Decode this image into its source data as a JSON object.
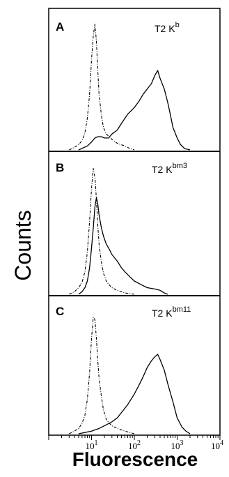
{
  "chart_data": {
    "type": "line",
    "ylabel": "Counts",
    "xlabel": "Fluorescence",
    "x_scale": "log",
    "xlim": [
      1,
      10000
    ],
    "ylim": [
      0,
      1
    ],
    "x_ticks": [
      {
        "value": 10,
        "base": "10",
        "exp": "1"
      },
      {
        "value": 100,
        "base": "10",
        "exp": "2"
      },
      {
        "value": 1000,
        "base": "10",
        "exp": "3"
      },
      {
        "value": 10000,
        "base": "10",
        "exp": "4"
      }
    ],
    "panels": [
      {
        "letter": "A",
        "title_main": "T2 K",
        "title_sup": "b",
        "series": [
          {
            "style": "dashed",
            "x": [
              3,
              4,
              5,
              6,
              7,
              8,
              9,
              10,
              11,
              12,
              13,
              14,
              15,
              17,
              19,
              22,
              26,
              30,
              40,
              60,
              80,
              100
            ],
            "y": [
              0.0,
              0.02,
              0.04,
              0.07,
              0.13,
              0.24,
              0.42,
              0.68,
              0.86,
              0.95,
              0.82,
              0.6,
              0.42,
              0.26,
              0.17,
              0.12,
              0.1,
              0.08,
              0.05,
              0.03,
              0.01,
              0.0
            ]
          },
          {
            "style": "solid",
            "x": [
              5,
              8,
              10,
              12,
              14,
              17,
              20,
              25,
              30,
              40,
              50,
              70,
              100,
              130,
              160,
              200,
              250,
              300,
              350,
              400,
              500,
              600,
              700,
              800,
              1000,
              1200,
              1500,
              2000
            ],
            "y": [
              0.0,
              0.03,
              0.06,
              0.09,
              0.1,
              0.1,
              0.09,
              0.09,
              0.12,
              0.15,
              0.2,
              0.27,
              0.32,
              0.37,
              0.42,
              0.46,
              0.5,
              0.56,
              0.6,
              0.54,
              0.46,
              0.36,
              0.26,
              0.17,
              0.09,
              0.04,
              0.01,
              0.0
            ]
          }
        ]
      },
      {
        "letter": "B",
        "title_main": "T2 K",
        "title_sup": "bm3",
        "series": [
          {
            "style": "dashed",
            "x": [
              3,
              4,
              5,
              6,
              7,
              8,
              9,
              10,
              11,
              12,
              13,
              14,
              15,
              17,
              19,
              22,
              26,
              30,
              40,
              60,
              100
            ],
            "y": [
              0.0,
              0.02,
              0.05,
              0.09,
              0.17,
              0.32,
              0.55,
              0.8,
              0.95,
              0.88,
              0.72,
              0.52,
              0.38,
              0.24,
              0.16,
              0.1,
              0.07,
              0.05,
              0.03,
              0.01,
              0.0
            ]
          },
          {
            "style": "solid",
            "x": [
              5,
              6,
              7,
              8,
              9,
              10,
              11,
              12,
              13,
              14,
              15,
              17,
              19,
              22,
              26,
              30,
              40,
              50,
              60,
              80,
              100,
              150,
              200,
              300,
              400,
              500,
              600
            ],
            "y": [
              0.0,
              0.02,
              0.05,
              0.1,
              0.2,
              0.35,
              0.5,
              0.66,
              0.73,
              0.68,
              0.6,
              0.5,
              0.44,
              0.38,
              0.34,
              0.3,
              0.25,
              0.2,
              0.17,
              0.13,
              0.1,
              0.07,
              0.05,
              0.04,
              0.03,
              0.01,
              0.0
            ]
          }
        ]
      },
      {
        "letter": "C",
        "title_main": "T2 K",
        "title_sup": "bm11",
        "series": [
          {
            "style": "dashed",
            "x": [
              3,
              4,
              5,
              6,
              7,
              8,
              9,
              10,
              11,
              12,
              13,
              14,
              15,
              17,
              19,
              22,
              26,
              30,
              40,
              60,
              100
            ],
            "y": [
              0.0,
              0.02,
              0.04,
              0.08,
              0.14,
              0.26,
              0.46,
              0.72,
              0.88,
              0.86,
              0.72,
              0.55,
              0.42,
              0.28,
              0.18,
              0.11,
              0.08,
              0.06,
              0.04,
              0.02,
              0.0
            ]
          },
          {
            "style": "solid",
            "x": [
              5,
              10,
              15,
              20,
              30,
              40,
              50,
              70,
              100,
              130,
              160,
              200,
              250,
              300,
              350,
              400,
              500,
              600,
              800,
              1000,
              1300,
              1600,
              2000
            ],
            "y": [
              0.0,
              0.02,
              0.04,
              0.06,
              0.09,
              0.12,
              0.16,
              0.22,
              0.3,
              0.37,
              0.43,
              0.5,
              0.55,
              0.58,
              0.6,
              0.56,
              0.48,
              0.38,
              0.24,
              0.12,
              0.05,
              0.02,
              0.0
            ]
          }
        ]
      }
    ]
  }
}
